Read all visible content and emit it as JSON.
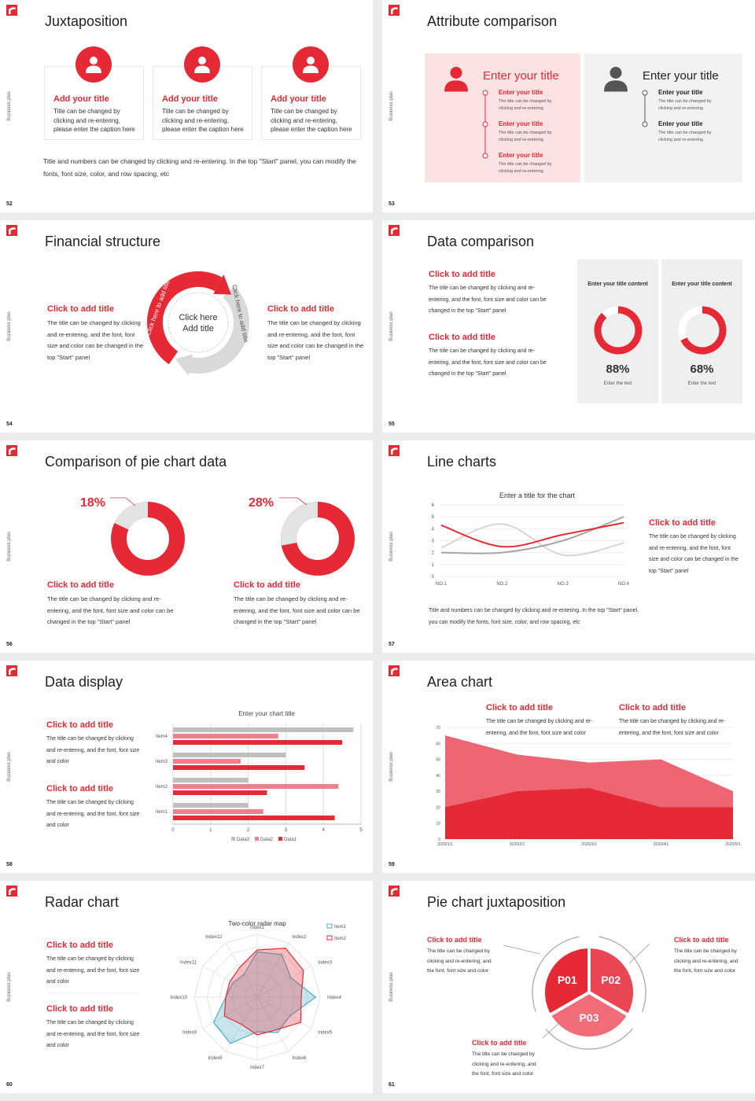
{
  "side_label": "Business plan",
  "slides": [
    {
      "number": "52",
      "title": "Juxtaposition",
      "cards": [
        {
          "title": "Add your title",
          "text": "Title can be changed by clicking and re-entering, please enter the caption here"
        },
        {
          "title": "Add your title",
          "text": "Title can be changed by clicking and re-entering, please enter the caption here"
        },
        {
          "title": "Add your title",
          "text": "Title can be changed by clicking and re-entering, please enter the caption here"
        }
      ],
      "note": "Title and numbers can be changed by clicking and re-entering. In the top \"Start\" panel, you can modify the fonts, font size, color, and row spacing, etc"
    },
    {
      "number": "53",
      "title": "Attribute comparison",
      "panels": [
        {
          "title": "Enter your title",
          "items": [
            {
              "title": "Enter your title",
              "text": "The title can be changed by clicking and re-entering"
            },
            {
              "title": "Enter your title",
              "text": "The title can be changed by clicking and re-entering"
            },
            {
              "title": "Enter your title",
              "text": "The title can be changed by clicking and re-entering"
            }
          ]
        },
        {
          "title": "Enter your title",
          "items": [
            {
              "title": "Enter your title",
              "text": "The title can be changed by clicking and re-entering"
            },
            {
              "title": "Enter your title",
              "text": "The title can be changed by clicking and re-entering"
            }
          ]
        }
      ]
    },
    {
      "number": "54",
      "title": "Financial structure",
      "left": {
        "title": "Click to add title",
        "text": "The title can be changed by clicking and re-entering, and the font, font size and color can be changed in the top \"Start\" panel"
      },
      "right": {
        "title": "Click to add title",
        "text": "The title can be changed by clicking and re-entering, and the font, font size and color can be changed in the top \"Start\" panel"
      },
      "center": "Click here Add title",
      "arc_labels": [
        "Click here to add title",
        "Click here to add title"
      ]
    },
    {
      "number": "55",
      "title": "Data comparison",
      "blocks": [
        {
          "title": "Click to add title",
          "text": "The title can be changed by clicking and re-entering, and the font, font size and color can be changed in the top \"Start\" panel"
        },
        {
          "title": "Click to add title",
          "text": "The title can be changed by clicking and re-entering, and the font, font size and color can be changed in the top \"Start\" panel"
        }
      ],
      "cards": [
        {
          "heading": "Enter your title content",
          "value": 88,
          "value_label": "88%",
          "caption": "Enter the text"
        },
        {
          "heading": "Enter your title content",
          "value": 68,
          "value_label": "68%",
          "caption": "Enter the text"
        }
      ]
    },
    {
      "number": "56",
      "title": "Comparison of pie chart data",
      "pies": [
        {
          "value": 18,
          "value_label": "18%",
          "title": "Click to add title",
          "text": "The title can be changed by clicking and re-entering, and the font, font size and color can be changed in the top \"Start\" panel"
        },
        {
          "value": 28,
          "value_label": "28%",
          "title": "Click to add title",
          "text": "The title can be changed by clicking and re-entering, and the font, font size and color can be changed in the top \"Start\" panel"
        }
      ]
    },
    {
      "number": "57",
      "title": "Line charts",
      "chart": {
        "type": "line",
        "title": "Enter a title for the chart",
        "categories": [
          "NO.1",
          "NO.2",
          "NO.3",
          "NO.4"
        ],
        "ylim": [
          0,
          6
        ],
        "yticks": [
          0,
          1,
          2,
          3,
          4,
          5,
          6
        ],
        "grid": true,
        "series": [
          {
            "color": "#d6d6d6",
            "values": [
              2.4,
              4.4,
              1.8,
              2.8
            ]
          },
          {
            "color": "#a6a6a6",
            "values": [
              2.0,
              2.0,
              3.0,
              5.0
            ]
          },
          {
            "color": "#e52a35",
            "values": [
              4.3,
              2.5,
              3.5,
              4.5
            ]
          }
        ]
      },
      "block": {
        "title": "Click to add title",
        "text": "The title can be changed by clicking and re-entering, and the font, font size and color can be changed in the top \"Start\" panel"
      },
      "note": "Title and numbers can be changed by clicking and re-entering. In the top \"Start\" panel, you can modify the fonts, font size, color, and row spacing, etc"
    },
    {
      "number": "58",
      "title": "Data display",
      "blocks": [
        {
          "title": "Click to add title",
          "text": "The title can be changed by clicking and re-entering, and the font, font size and color"
        },
        {
          "title": "Click to add title",
          "text": "The title can be changed by clicking and re-entering, and the font, font size and color"
        }
      ],
      "chart": {
        "type": "bar",
        "orientation": "horizontal",
        "title": "Enter your chart title",
        "categories": [
          "Item1",
          "Item2",
          "Item3",
          "Item4"
        ],
        "xlim": [
          0,
          5
        ],
        "xticks": [
          0,
          1,
          2,
          3,
          4,
          5
        ],
        "grid": true,
        "legend": "bottom",
        "series": [
          {
            "name": "Data3",
            "color": "#c0c0c0",
            "values": [
              2.0,
              2.0,
              3.0,
              4.8
            ]
          },
          {
            "name": "Data2",
            "color": "#f07f8b",
            "values": [
              2.4,
              4.4,
              1.8,
              2.8
            ]
          },
          {
            "name": "Data1",
            "color": "#e52a35",
            "values": [
              4.3,
              2.5,
              3.5,
              4.5
            ]
          }
        ]
      }
    },
    {
      "number": "59",
      "title": "Area chart",
      "blocks": [
        {
          "title": "Click to add title",
          "text": "The title can be changed by clicking and re-entering, and the font, font size and color"
        },
        {
          "title": "Click to add title",
          "text": "The title can be changed by clicking and re-entering, and the font, font size and color"
        }
      ],
      "chart": {
        "type": "area",
        "x": [
          "2020/1/1",
          "2020/2/1",
          "2020/3/1",
          "2020/4/1",
          "2020/5/1"
        ],
        "ylim": [
          0,
          70
        ],
        "yticks": [
          0,
          10,
          20,
          30,
          40,
          50,
          60,
          70
        ],
        "grid": true,
        "series": [
          {
            "color": "#ee6673",
            "values": [
              65,
              53,
              48,
              50,
              30
            ]
          },
          {
            "color": "#e52a35",
            "values": [
              20,
              30,
              32,
              20,
              20
            ]
          }
        ]
      }
    },
    {
      "number": "60",
      "title": "Radar chart",
      "blocks": [
        {
          "title": "Click to add title",
          "text": "The title can be changed by clicking and re-entering, and the font, font size and color"
        },
        {
          "title": "Click to add title",
          "text": "The title can be changed by clicking and re-entering, and the font, font size and color"
        }
      ],
      "chart": {
        "type": "radar",
        "title": "Two-color radar map",
        "categories": [
          "Index1",
          "Index2",
          "Index3",
          "Index4",
          "Index5",
          "Index6",
          "Index7",
          "Index8",
          "Index9",
          "Index10",
          "Index11",
          "Index12"
        ],
        "rlim": [
          0,
          10
        ],
        "legend": "top-right",
        "series": [
          {
            "name": "Item1",
            "color": "#4bacc6",
            "values": [
              7.2,
              7.8,
              6.2,
              9.3,
              6.0,
              6.5,
              5.5,
              8.5,
              8.0,
              5.0,
              4.5,
              4.2
            ]
          },
          {
            "name": "Item2",
            "color": "#e52a35",
            "values": [
              7.5,
              9.0,
              8.5,
              7.0,
              8.0,
              6.0,
              6.0,
              5.0,
              6.0,
              5.0,
              5.0,
              5.5
            ]
          }
        ]
      }
    },
    {
      "number": "61",
      "title": "Pie chart juxtaposition",
      "segments": [
        "P01",
        "P02",
        "P03"
      ],
      "blocks": [
        {
          "title": "Click to add title",
          "text": "The title can be changed by clicking and re-entering, and the font, font size and color"
        },
        {
          "title": "Click to add title",
          "text": "The title can be changed by clicking and re-entering, and the font, font size and color"
        },
        {
          "title": "Click to add title",
          "text": "The title can be changed by clicking and re-entering, and the font, font size and color"
        }
      ]
    }
  ]
}
